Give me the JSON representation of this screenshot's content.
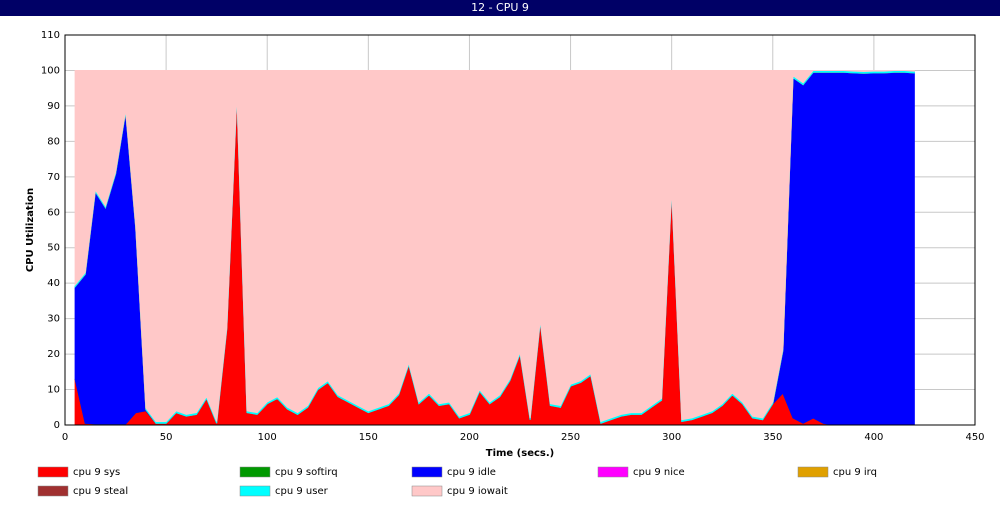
{
  "chart_data": {
    "type": "stacked-area",
    "window_title": "12 - CPU 9",
    "x_label": "Time (secs.)",
    "y_label": "CPU Utilization",
    "xlim": [
      0,
      450
    ],
    "xticks": [
      0,
      50,
      100,
      150,
      200,
      250,
      300,
      350,
      400,
      450
    ],
    "ylim": [
      0,
      110
    ],
    "yticks": [
      0,
      10,
      20,
      30,
      40,
      50,
      60,
      70,
      80,
      90,
      100,
      110
    ],
    "grid": true,
    "x": [
      5,
      10,
      15,
      20,
      25,
      30,
      35,
      40,
      45,
      50,
      55,
      60,
      65,
      70,
      75,
      80,
      85,
      90,
      95,
      100,
      105,
      110,
      115,
      120,
      125,
      130,
      135,
      140,
      145,
      150,
      155,
      160,
      165,
      170,
      175,
      180,
      185,
      190,
      195,
      200,
      205,
      210,
      215,
      220,
      225,
      230,
      235,
      240,
      245,
      250,
      255,
      260,
      265,
      270,
      275,
      280,
      285,
      290,
      295,
      300,
      305,
      310,
      315,
      320,
      325,
      330,
      335,
      340,
      345,
      350,
      355,
      360,
      365,
      370,
      375,
      380,
      385,
      390,
      395,
      400,
      405,
      410,
      415,
      420
    ],
    "series": [
      {
        "name": "cpu 9 sys",
        "color": "#ff0000",
        "values": [
          13,
          0.5,
          0.3,
          0.3,
          0.3,
          0.3,
          3.5,
          4,
          0.5,
          0.5,
          3.5,
          2.5,
          3,
          7.5,
          0.5,
          27,
          93,
          3.5,
          3,
          6,
          7.5,
          4.5,
          3,
          5,
          10,
          12,
          8,
          6.5,
          5,
          3.5,
          4.5,
          5.5,
          8.5,
          17,
          6,
          8.5,
          5.5,
          6,
          2,
          3,
          9.5,
          6,
          8,
          12.5,
          20,
          1.5,
          29,
          5.5,
          5,
          11,
          12,
          14,
          0.5,
          1.5,
          2.5,
          3,
          3,
          5,
          7,
          66,
          1,
          1.5,
          2.5,
          3.5,
          5.5,
          8.5,
          6,
          2,
          1.5,
          6,
          9,
          2,
          0.5,
          2,
          0.5,
          0,
          0,
          0,
          0,
          0,
          0,
          0,
          0,
          0
        ]
      },
      {
        "name": "cpu 9 softirq",
        "color": "#009900",
        "values": [
          0,
          0,
          0,
          0,
          0,
          0,
          0,
          0,
          0,
          0,
          0,
          0,
          0,
          0,
          0,
          0,
          0,
          0,
          0,
          0,
          0,
          0,
          0,
          0,
          0,
          0,
          0,
          0,
          0,
          0,
          0,
          0,
          0,
          0,
          0,
          0,
          0,
          0,
          0,
          0,
          0,
          0,
          0,
          0,
          0,
          0,
          0,
          0,
          0,
          0,
          0,
          0,
          0,
          0,
          0,
          0,
          0,
          0,
          0,
          0,
          0,
          0,
          0,
          0,
          0,
          0,
          0,
          0,
          0,
          0,
          0,
          0,
          0,
          0,
          0,
          0,
          0,
          0,
          0,
          0,
          0,
          0,
          0,
          0
        ]
      },
      {
        "name": "cpu 9 idle",
        "color": "#0000ff",
        "values": [
          26,
          42,
          65.5,
          61,
          70.5,
          88,
          52,
          0.3,
          0,
          0,
          0,
          0,
          0,
          0,
          0,
          0,
          0,
          0,
          0,
          0,
          0,
          0,
          0,
          0,
          0,
          0,
          0,
          0,
          0,
          0,
          0,
          0,
          0,
          0,
          0,
          0,
          0,
          0,
          0,
          0,
          0,
          0,
          0,
          0,
          0,
          0,
          0,
          0,
          0,
          0,
          0,
          0,
          0,
          0,
          0,
          0,
          0,
          0,
          0,
          0,
          0,
          0,
          0,
          0,
          0,
          0,
          0,
          0,
          0,
          0,
          12,
          96,
          95.5,
          97.5,
          99,
          99.5,
          99.5,
          99.3,
          99.2,
          99.3,
          99.3,
          99.5,
          99.5,
          99.3
        ]
      },
      {
        "name": "cpu 9 nice",
        "color": "#ff00ff",
        "values": [
          0,
          0,
          0,
          0,
          0,
          0,
          0,
          0,
          0,
          0,
          0,
          0,
          0,
          0,
          0,
          0,
          0,
          0,
          0,
          0,
          0,
          0,
          0,
          0,
          0,
          0,
          0,
          0,
          0,
          0,
          0,
          0,
          0,
          0,
          0,
          0,
          0,
          0,
          0,
          0,
          0,
          0,
          0,
          0,
          0,
          0,
          0,
          0,
          0,
          0,
          0,
          0,
          0,
          0,
          0,
          0,
          0,
          0,
          0,
          0,
          0,
          0,
          0,
          0,
          0,
          0,
          0,
          0,
          0,
          0,
          0,
          0,
          0,
          0,
          0,
          0,
          0,
          0,
          0,
          0,
          0,
          0,
          0,
          0
        ]
      },
      {
        "name": "cpu 9 irq",
        "color": "#e0a000",
        "values": [
          0,
          0,
          0,
          0,
          0,
          0,
          0,
          0,
          0,
          0,
          0,
          0,
          0,
          0,
          0,
          0,
          0,
          0,
          0,
          0,
          0,
          0,
          0,
          0,
          0,
          0,
          0,
          0,
          0,
          0,
          0,
          0,
          0,
          0,
          0,
          0,
          0,
          0,
          0,
          0,
          0,
          0,
          0,
          0,
          0,
          0,
          0,
          0,
          0,
          0,
          0,
          0,
          0,
          0,
          0,
          0,
          0,
          0,
          0,
          0,
          0,
          0,
          0,
          0,
          0,
          0,
          0,
          0,
          0,
          0,
          0,
          0,
          0,
          0,
          0,
          0,
          0,
          0,
          0,
          0,
          0,
          0,
          0,
          0
        ]
      },
      {
        "name": "cpu 9 steal",
        "color": "#a03030",
        "values": [
          0,
          0,
          0,
          0,
          0,
          0,
          0,
          0,
          0,
          0,
          0,
          0,
          0,
          0,
          0,
          0,
          0,
          0,
          0,
          0,
          0,
          0,
          0,
          0,
          0,
          0,
          0,
          0,
          0,
          0,
          0,
          0,
          0,
          0,
          0,
          0,
          0,
          0,
          0,
          0,
          0,
          0,
          0,
          0,
          0,
          0,
          0,
          0,
          0,
          0,
          0,
          0,
          0,
          0,
          0,
          0,
          0,
          0,
          0,
          0,
          0,
          0,
          0,
          0,
          0,
          0,
          0,
          0,
          0,
          0,
          0,
          0,
          0,
          0,
          0,
          0,
          0,
          0,
          0,
          0,
          0,
          0,
          0,
          0
        ]
      },
      {
        "name": "cpu 9 user",
        "color": "#00ffff",
        "values": [
          0.5,
          0.5,
          0.5,
          0.5,
          0.5,
          0.5,
          0.5,
          0.5,
          0.5,
          0.5,
          0.5,
          0.5,
          0.5,
          0.5,
          0.5,
          0.5,
          0.5,
          0.5,
          0.5,
          0.5,
          0.5,
          0.5,
          0.5,
          0.5,
          0.5,
          0.5,
          0.5,
          0.5,
          0.5,
          0.5,
          0.5,
          0.5,
          0.5,
          0.5,
          0.5,
          0.5,
          0.5,
          0.5,
          0.5,
          0.5,
          0.5,
          0.5,
          0.5,
          0.5,
          0.5,
          0.5,
          0.5,
          0.5,
          0.5,
          0.5,
          0.5,
          0.5,
          0.5,
          0.5,
          0.5,
          0.5,
          0.5,
          0.5,
          0.5,
          0.5,
          0.5,
          0.5,
          0.5,
          0.5,
          0.5,
          0.5,
          0.5,
          0.5,
          0.5,
          0.5,
          0.5,
          0.5,
          0.5,
          0.5,
          0.5,
          0.5,
          0.5,
          0.5,
          0.5,
          0.5,
          0.5,
          0.5,
          0.5,
          0.5
        ]
      },
      {
        "name": "cpu 9 iowait",
        "color": "#ffc8c8",
        "values": [
          60.5,
          57,
          33.7,
          38.2,
          28.7,
          11.2,
          44,
          95.2,
          99,
          99,
          96,
          97,
          96.5,
          92,
          99,
          72.5,
          6.5,
          96,
          96.5,
          93.5,
          92,
          95,
          96.5,
          94.5,
          89.5,
          87.5,
          91.5,
          93,
          94.5,
          96,
          95,
          94,
          91,
          82.5,
          93.5,
          91,
          94,
          93.5,
          97.5,
          96.5,
          90,
          93.5,
          91.5,
          87,
          79.5,
          98,
          70.5,
          94,
          94.5,
          88.5,
          87.5,
          85.5,
          99,
          98,
          97,
          96.5,
          96.5,
          94.5,
          92.5,
          33.5,
          98.5,
          98,
          97,
          96,
          94,
          91,
          93.5,
          97.5,
          98,
          93.5,
          78.5,
          1.5,
          3.5,
          0,
          0,
          0,
          0,
          0.2,
          0.3,
          0.2,
          0.2,
          0,
          0,
          0.2
        ]
      }
    ]
  }
}
